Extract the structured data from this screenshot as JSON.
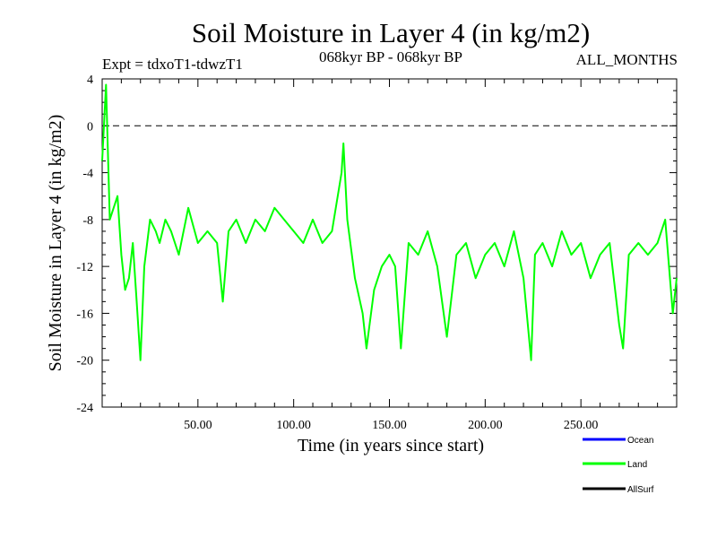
{
  "chart_data": {
    "type": "line",
    "title": "Soil Moisture in Layer 4 (in kg/m2)",
    "subtitle_left": "Expt = tdxoT1-tdwzT1",
    "subtitle_center": "068kyr BP - 068kyr BP",
    "subtitle_right": "ALL_MONTHS",
    "xlabel": "Time (in years since start)",
    "ylabel": "Soil Moisture in Layer 4 (in kg/m2)",
    "xlim": [
      0,
      300
    ],
    "ylim": [
      -24,
      4
    ],
    "xticks": [
      50,
      100,
      150,
      200,
      250
    ],
    "xtick_labels": [
      "50.00",
      "100.00",
      "150.00",
      "200.00",
      "250.00"
    ],
    "yticks": [
      4,
      0,
      -4,
      -8,
      -12,
      -16,
      -20,
      -24
    ],
    "ytick_labels": [
      "4",
      "0",
      "-4",
      "-8",
      "-12",
      "-16",
      "-20",
      "-24"
    ],
    "reference_line": 0,
    "legend": [
      {
        "name": "Ocean",
        "color": "#0000ff"
      },
      {
        "name": "Land",
        "color": "#00ff00"
      },
      {
        "name": "AllSurf",
        "color": "#000000"
      }
    ],
    "series": [
      {
        "name": "Land",
        "color": "#00ff00",
        "x": [
          0,
          2,
          4,
          6,
          8,
          10,
          12,
          14,
          16,
          18,
          20,
          22,
          25,
          28,
          30,
          33,
          36,
          40,
          45,
          50,
          55,
          60,
          63,
          66,
          70,
          75,
          80,
          85,
          90,
          95,
          100,
          105,
          110,
          115,
          120,
          125,
          126,
          128,
          132,
          136,
          138,
          142,
          146,
          150,
          153,
          156,
          160,
          165,
          170,
          175,
          180,
          185,
          190,
          195,
          200,
          205,
          210,
          215,
          220,
          224,
          226,
          230,
          235,
          240,
          245,
          250,
          255,
          260,
          265,
          270,
          272,
          275,
          280,
          285,
          290,
          294,
          298,
          300
        ],
        "values": [
          -3,
          3.5,
          -8,
          -7,
          -6,
          -11,
          -14,
          -13,
          -10,
          -15,
          -20,
          -12,
          -8,
          -9,
          -10,
          -8,
          -9,
          -11,
          -7,
          -10,
          -9,
          -10,
          -15,
          -9,
          -8,
          -10,
          -8,
          -9,
          -7,
          -8,
          -9,
          -10,
          -8,
          -10,
          -9,
          -4,
          -1.5,
          -8,
          -13,
          -16,
          -19,
          -14,
          -12,
          -11,
          -12,
          -19,
          -10,
          -11,
          -9,
          -12,
          -18,
          -11,
          -10,
          -13,
          -11,
          -10,
          -12,
          -9,
          -13,
          -20,
          -11,
          -10,
          -12,
          -9,
          -11,
          -10,
          -13,
          -11,
          -10,
          -17,
          -19,
          -11,
          -10,
          -11,
          -10,
          -8,
          -16,
          -13
        ]
      }
    ]
  }
}
